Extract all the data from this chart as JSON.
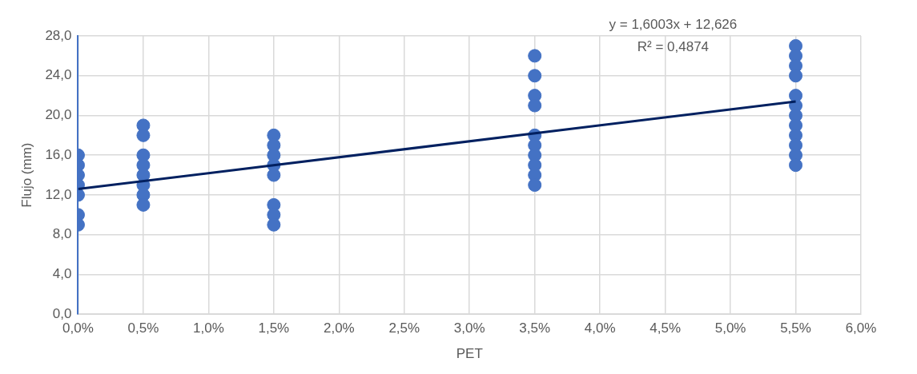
{
  "chart_data": {
    "type": "scatter",
    "xlabel": "PET",
    "ylabel": "Flujo (mm)",
    "annotations": [
      "y = 1,6003x + 12,626",
      "R² = 0,4874"
    ],
    "series": [
      {
        "color": "#4472c4",
        "x": [
          0,
          0,
          0,
          0,
          0,
          0,
          0,
          0.5,
          0.5,
          0.5,
          0.5,
          0.5,
          0.5,
          0.5,
          0.5,
          1.5,
          1.5,
          1.5,
          1.5,
          1.5,
          1.5,
          1.5,
          1.5,
          3.5,
          3.5,
          3.5,
          3.5,
          3.5,
          3.5,
          3.5,
          3.5,
          3.5,
          3.5,
          5.5,
          5.5,
          5.5,
          5.5,
          5.5,
          5.5,
          5.5,
          5.5,
          5.5,
          5.5,
          5.5,
          5.5
        ],
        "values": [
          16,
          15,
          14,
          13,
          12,
          10,
          9,
          19,
          18,
          16,
          15,
          14,
          13,
          12,
          11,
          18,
          17,
          16,
          15,
          14,
          11,
          10,
          9,
          26,
          24,
          22,
          21,
          18,
          17,
          16,
          15,
          14,
          13,
          27,
          26,
          25,
          24,
          22,
          21,
          20,
          19,
          18,
          17,
          16,
          15
        ]
      },
      {
        "type": "line",
        "marker": "none",
        "color": "#002060",
        "x": [
          0,
          5.5
        ],
        "values": [
          12.6,
          21.4
        ]
      }
    ],
    "xlim": [
      0,
      6
    ],
    "xticks": [
      {
        "value": 0,
        "label": "0,0%"
      },
      {
        "value": 0.5,
        "label": "0,5%"
      },
      {
        "value": 1,
        "label": "1,0%"
      },
      {
        "value": 1.5,
        "label": "1,5%"
      },
      {
        "value": 2,
        "label": "2,0%"
      },
      {
        "value": 2.5,
        "label": "2,5%"
      },
      {
        "value": 3,
        "label": "3,0%"
      },
      {
        "value": 3.5,
        "label": "3,5%"
      },
      {
        "value": 4,
        "label": "4,0%"
      },
      {
        "value": 4.5,
        "label": "4,5%"
      },
      {
        "value": 5,
        "label": "5,0%"
      },
      {
        "value": 5.5,
        "label": "5,5%"
      },
      {
        "value": 6,
        "label": "6,0%"
      }
    ],
    "ylim": [
      0,
      28
    ],
    "yticks": [
      {
        "value": 0,
        "label": "0,0"
      },
      {
        "value": 4,
        "label": "4,0"
      },
      {
        "value": 8,
        "label": "8,0"
      },
      {
        "value": 12,
        "label": "12,0"
      },
      {
        "value": 16,
        "label": "16,0"
      },
      {
        "value": 20,
        "label": "20,0"
      },
      {
        "value": 24,
        "label": "24,0"
      },
      {
        "value": 28,
        "label": "28,0"
      }
    ],
    "grid": true,
    "marker": "circle",
    "legend": false
  }
}
